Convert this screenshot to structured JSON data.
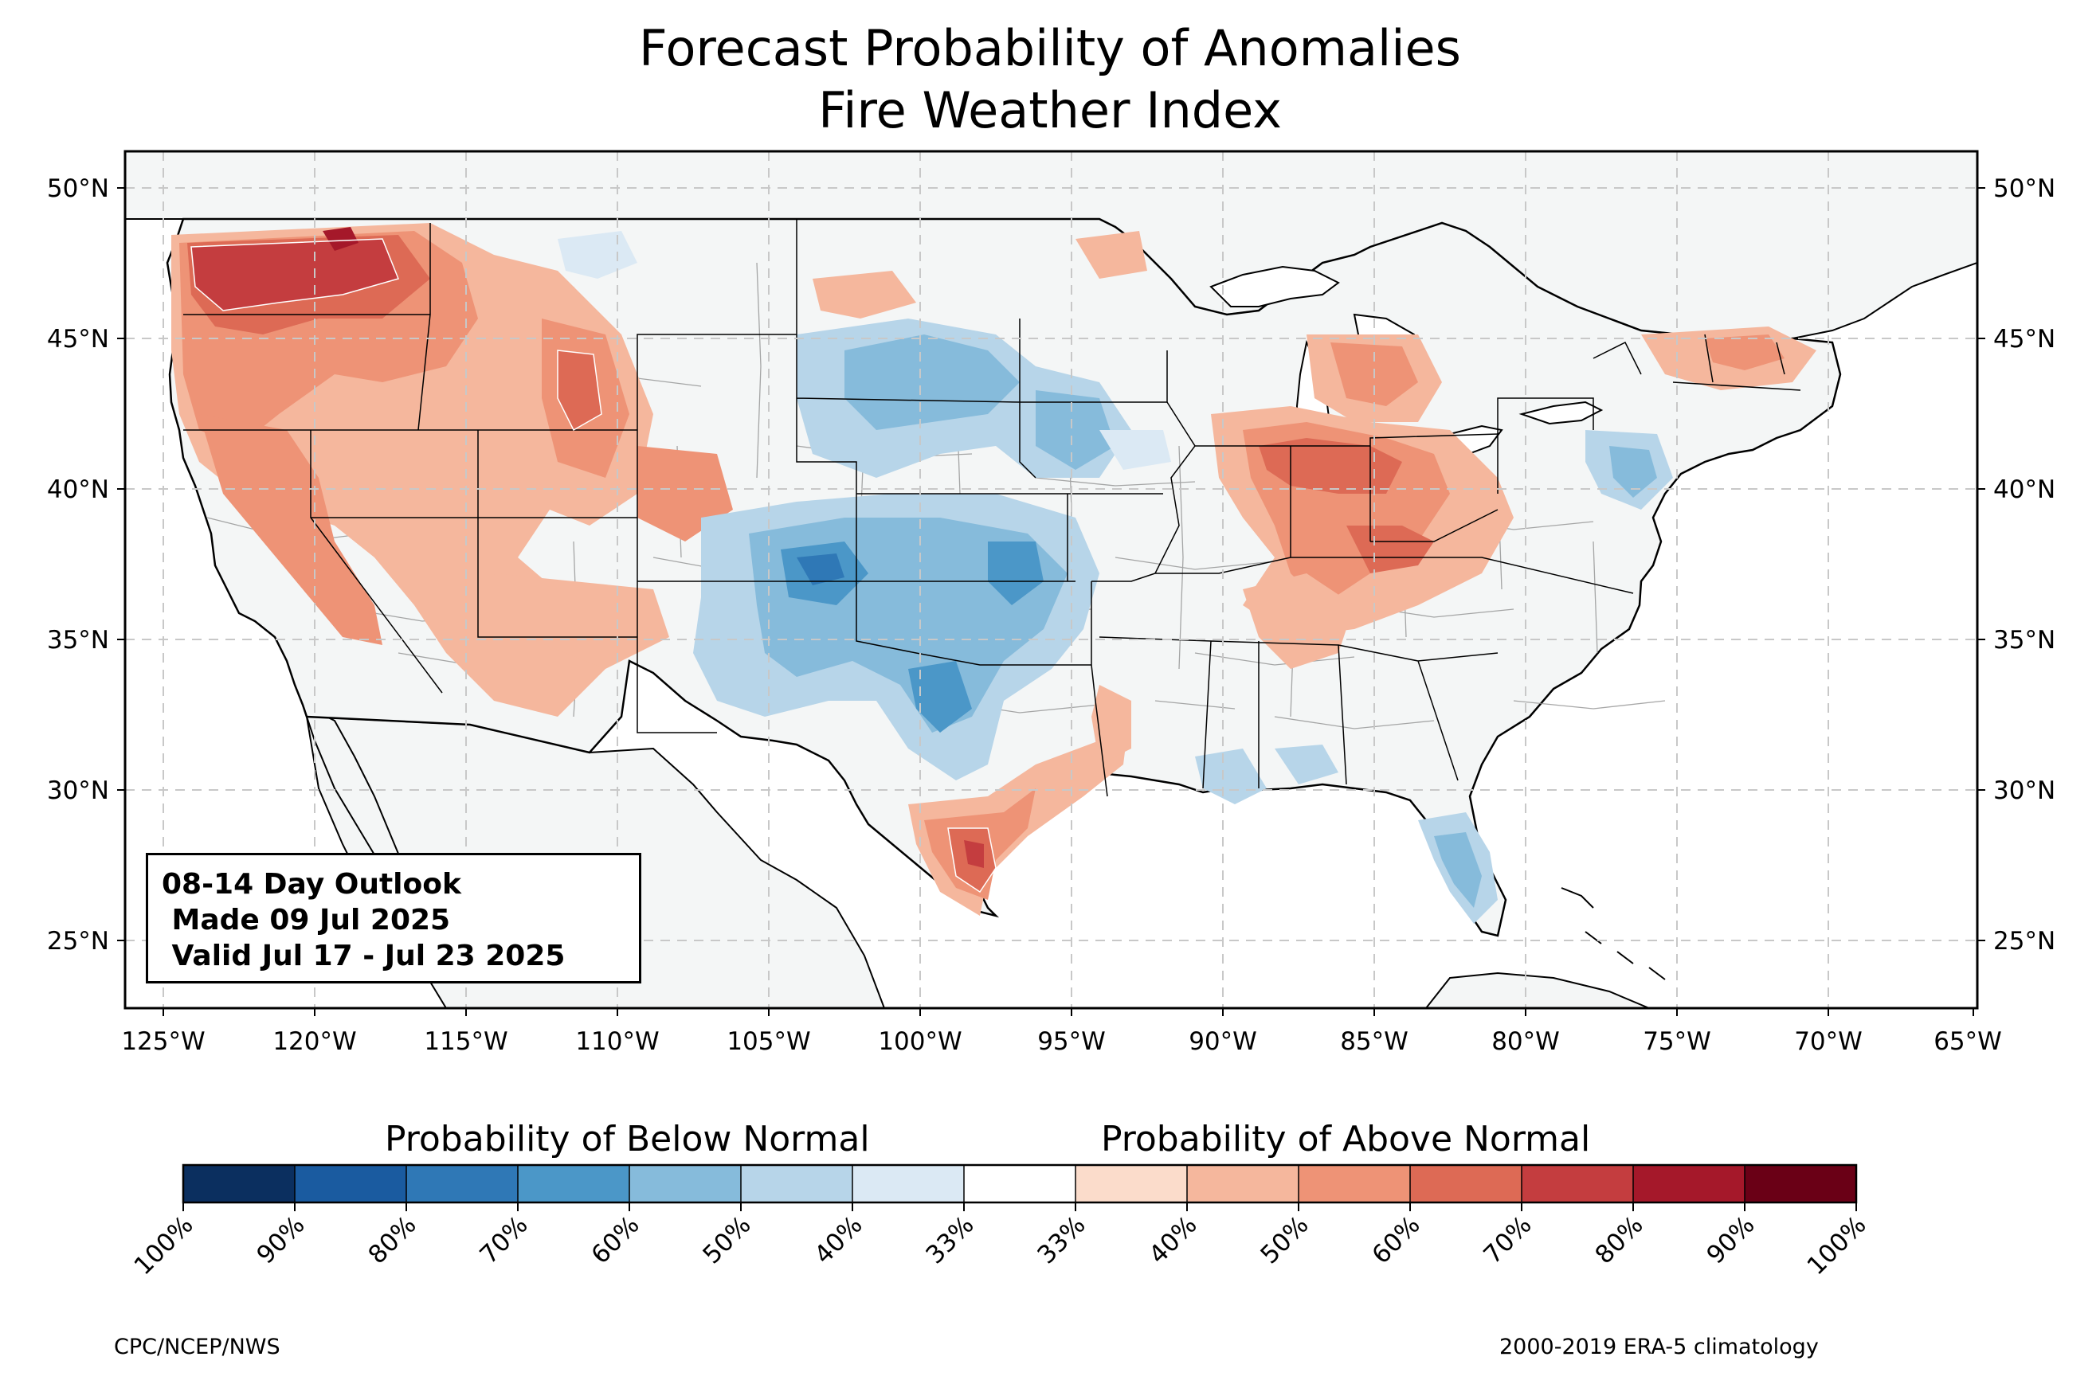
{
  "map": {
    "title_lines": [
      "Forecast Probability of Anomalies",
      "Fire Weather Index"
    ],
    "lat_labels": [
      "50°N",
      "45°N",
      "40°N",
      "35°N",
      "30°N",
      "25°N"
    ],
    "lon_labels": [
      "125°W",
      "120°W",
      "115°W",
      "110°W",
      "105°W",
      "100°W",
      "95°W",
      "90°W",
      "85°W",
      "80°W",
      "75°W",
      "70°W",
      "65°W"
    ],
    "info_box": [
      "08-14 Day Outlook",
      " Made 09 Jul 2025",
      " Valid Jul 17 - Jul 23 2025"
    ],
    "colors": {
      "land": "#f4f6f6",
      "ocean": "#ffffff",
      "border": "#000000",
      "county": "#8a8a8a",
      "grid": "#cccccc"
    }
  },
  "legend": {
    "below_title": "Probability of Below Normal",
    "above_title": "Probability of Above Normal",
    "tick_labels": [
      "100%",
      "90%",
      "80%",
      "70%",
      "60%",
      "50%",
      "40%",
      "33%",
      "33%",
      "40%",
      "50%",
      "60%",
      "70%",
      "80%",
      "90%",
      "100%"
    ],
    "colors": [
      "#0b2f5f",
      "#1a5ba0",
      "#2f78b6",
      "#4b97c8",
      "#86bbdb",
      "#b7d5e9",
      "#dbe9f4",
      "#ffffff",
      "#fbdccb",
      "#f5b79d",
      "#ee9376",
      "#dd6a55",
      "#c43d3f",
      "#a5182a",
      "#6a0016"
    ]
  },
  "credits": {
    "left": "CPC/NCEP/NWS",
    "right": "2000-2019 ERA-5 climatology"
  }
}
